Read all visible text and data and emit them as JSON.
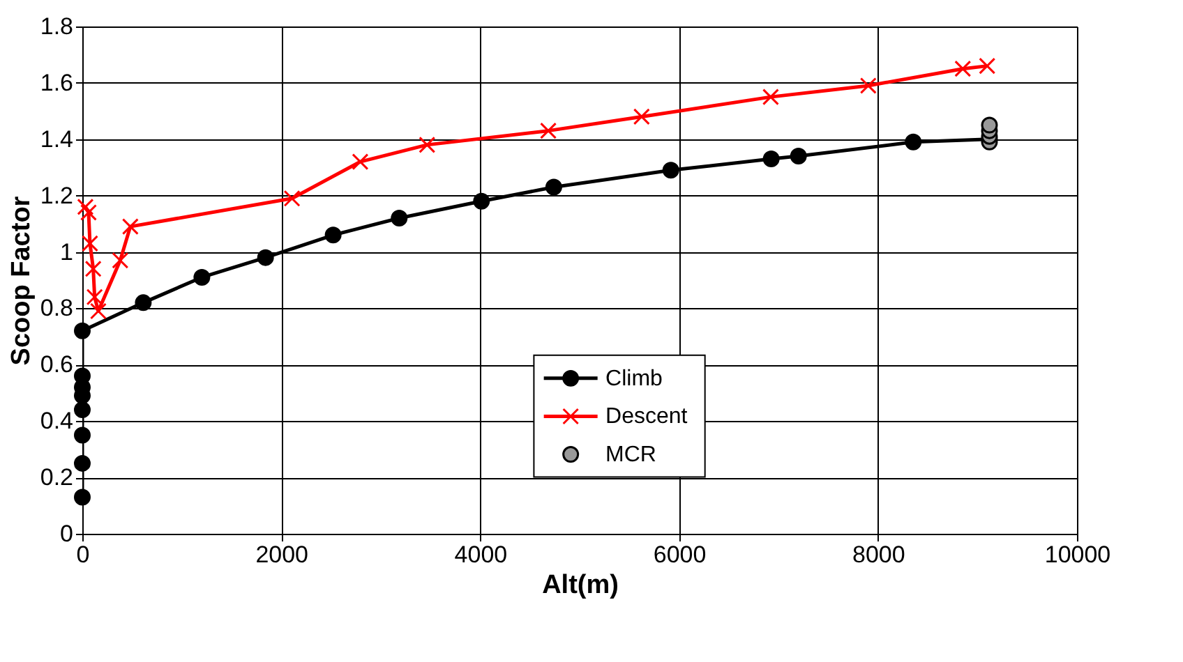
{
  "chart_data": {
    "type": "line",
    "xlabel": "Alt(m)",
    "ylabel": "Scoop Factor",
    "xlim": [
      0,
      10000
    ],
    "xticks": [
      0,
      2000,
      4000,
      6000,
      8000,
      10000
    ],
    "ylim": [
      0,
      1.8
    ],
    "yticks": [
      0,
      0.2,
      0.4,
      0.6,
      0.8,
      1,
      1.2,
      1.4,
      1.6,
      1.8
    ],
    "grid": true,
    "legend": "bottom",
    "series": [
      {
        "name": "Climb",
        "type": "line",
        "marker": "circle",
        "color": "#000000",
        "x": [
          0,
          0,
          0,
          0,
          0,
          0,
          0,
          0,
          613,
          1202,
          1842,
          2522,
          3186,
          4013,
          4740,
          5917,
          6926,
          7200,
          8354,
          9120
        ],
        "values": [
          0.13,
          0.25,
          0.35,
          0.44,
          0.49,
          0.52,
          0.56,
          0.72,
          0.82,
          0.91,
          0.98,
          1.06,
          1.12,
          1.18,
          1.23,
          1.29,
          1.33,
          1.34,
          1.39,
          1.4
        ]
      },
      {
        "name": "Descent",
        "type": "line",
        "marker": "cross",
        "color": "#ff0000",
        "x": [
          31,
          63,
          77,
          110,
          124,
          161,
          381,
          483,
          2108,
          2794,
          3466,
          4685,
          5623,
          6921,
          7902,
          8852,
          9097
        ],
        "values": [
          1.16,
          1.14,
          1.03,
          0.94,
          0.84,
          0.79,
          0.97,
          1.09,
          1.19,
          1.32,
          1.38,
          1.43,
          1.48,
          1.55,
          1.59,
          1.65,
          1.66
        ]
      },
      {
        "name": "MCR",
        "type": "scatter",
        "marker": "circle",
        "color": "#999999",
        "x": [
          9120,
          9120,
          9120,
          9120
        ],
        "values": [
          1.39,
          1.41,
          1.43,
          1.45
        ]
      }
    ]
  }
}
